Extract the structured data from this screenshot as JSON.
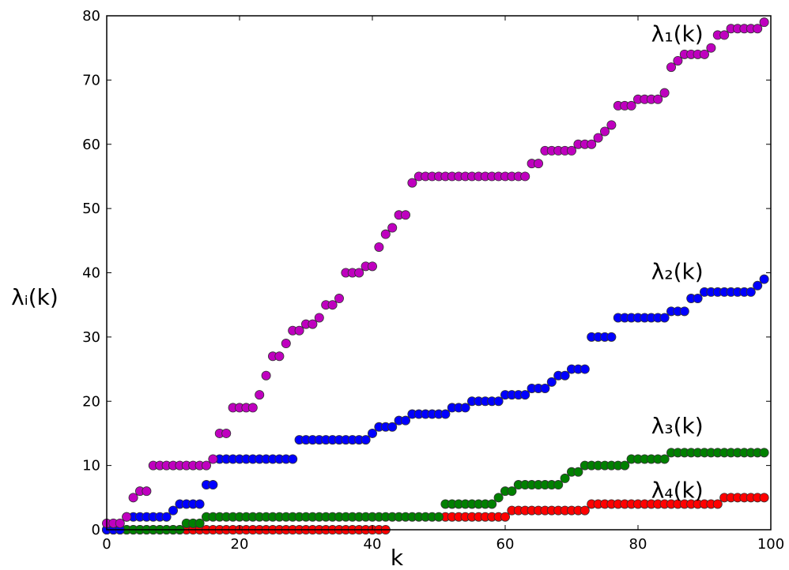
{
  "chart_data": {
    "type": "scatter",
    "title": "",
    "xlabel": "k",
    "ylabel": "λᵢ(k)",
    "xlim": [
      0,
      100
    ],
    "ylim": [
      0,
      80
    ],
    "xticks": [
      0,
      20,
      40,
      60,
      80,
      100
    ],
    "yticks": [
      0,
      10,
      20,
      30,
      40,
      50,
      60,
      70,
      80
    ],
    "grid": false,
    "legend": "none",
    "x": [
      0,
      1,
      2,
      3,
      4,
      5,
      6,
      7,
      8,
      9,
      10,
      11,
      12,
      13,
      14,
      15,
      16,
      17,
      18,
      19,
      20,
      21,
      22,
      23,
      24,
      25,
      26,
      27,
      28,
      29,
      30,
      31,
      32,
      33,
      34,
      35,
      36,
      37,
      38,
      39,
      40,
      41,
      42,
      43,
      44,
      45,
      46,
      47,
      48,
      49,
      50,
      51,
      52,
      53,
      54,
      55,
      56,
      57,
      58,
      59,
      60,
      61,
      62,
      63,
      64,
      65,
      66,
      67,
      68,
      69,
      70,
      71,
      72,
      73,
      74,
      75,
      76,
      77,
      78,
      79,
      80,
      81,
      82,
      83,
      84,
      85,
      86,
      87,
      88,
      89,
      90,
      91,
      92,
      93,
      94,
      95,
      96,
      97,
      98,
      99
    ],
    "series": [
      {
        "name": "λ₁(k)",
        "color": "#bf00bf",
        "values": [
          1,
          1,
          1,
          2,
          5,
          6,
          6,
          10,
          10,
          10,
          10,
          10,
          10,
          10,
          10,
          10,
          11,
          15,
          15,
          19,
          19,
          19,
          19,
          21,
          24,
          27,
          27,
          29,
          31,
          31,
          32,
          32,
          33,
          35,
          35,
          36,
          40,
          40,
          40,
          41,
          41,
          44,
          46,
          47,
          49,
          49,
          54,
          55,
          55,
          55,
          55,
          55,
          55,
          55,
          55,
          55,
          55,
          55,
          55,
          55,
          55,
          55,
          55,
          55,
          57,
          57,
          59,
          59,
          59,
          59,
          59,
          60,
          60,
          60,
          61,
          62,
          63,
          66,
          66,
          66,
          67,
          67,
          67,
          67,
          68,
          72,
          73,
          74,
          74,
          74,
          74,
          75,
          77,
          77,
          78,
          78,
          78,
          78,
          78,
          79
        ]
      },
      {
        "name": "λ₂(k)",
        "color": "#0000ff",
        "values": [
          0,
          0,
          0,
          2,
          2,
          2,
          2,
          2,
          2,
          2,
          3,
          4,
          4,
          4,
          4,
          7,
          7,
          11,
          11,
          11,
          11,
          11,
          11,
          11,
          11,
          11,
          11,
          11,
          11,
          14,
          14,
          14,
          14,
          14,
          14,
          14,
          14,
          14,
          14,
          14,
          15,
          16,
          16,
          16,
          17,
          17,
          18,
          18,
          18,
          18,
          18,
          18,
          19,
          19,
          19,
          20,
          20,
          20,
          20,
          20,
          21,
          21,
          21,
          21,
          22,
          22,
          22,
          23,
          24,
          24,
          25,
          25,
          25,
          30,
          30,
          30,
          30,
          33,
          33,
          33,
          33,
          33,
          33,
          33,
          33,
          34,
          34,
          34,
          36,
          36,
          37,
          37,
          37,
          37,
          37,
          37,
          37,
          37,
          38,
          39
        ]
      },
      {
        "name": "λ₃(k)",
        "color": "#008000",
        "values": [
          0,
          0,
          0,
          0,
          0,
          0,
          0,
          0,
          0,
          0,
          0,
          0,
          1,
          1,
          1,
          2,
          2,
          2,
          2,
          2,
          2,
          2,
          2,
          2,
          2,
          2,
          2,
          2,
          2,
          2,
          2,
          2,
          2,
          2,
          2,
          2,
          2,
          2,
          2,
          2,
          2,
          2,
          2,
          2,
          2,
          2,
          2,
          2,
          2,
          2,
          2,
          4,
          4,
          4,
          4,
          4,
          4,
          4,
          4,
          5,
          6,
          6,
          7,
          7,
          7,
          7,
          7,
          7,
          7,
          8,
          9,
          9,
          10,
          10,
          10,
          10,
          10,
          10,
          10,
          11,
          11,
          11,
          11,
          11,
          11,
          12,
          12,
          12,
          12,
          12,
          12,
          12,
          12,
          12,
          12,
          12,
          12,
          12,
          12,
          12
        ]
      },
      {
        "name": "λ₄(k)",
        "color": "#ff0000",
        "values": [
          0,
          0,
          0,
          0,
          0,
          0,
          0,
          0,
          0,
          0,
          0,
          0,
          0,
          0,
          0,
          0,
          0,
          0,
          0,
          0,
          0,
          0,
          0,
          0,
          0,
          0,
          0,
          0,
          0,
          0,
          0,
          0,
          0,
          0,
          0,
          0,
          0,
          0,
          0,
          0,
          0,
          0,
          0,
          null,
          null,
          null,
          null,
          null,
          null,
          null,
          null,
          2,
          2,
          2,
          2,
          2,
          2,
          2,
          2,
          2,
          2,
          3,
          3,
          3,
          3,
          3,
          3,
          3,
          3,
          3,
          3,
          3,
          3,
          4,
          4,
          4,
          4,
          4,
          4,
          4,
          4,
          4,
          4,
          4,
          4,
          4,
          4,
          4,
          4,
          4,
          4,
          4,
          4,
          5,
          5,
          5,
          5,
          5,
          5,
          5
        ]
      }
    ],
    "annotations": [
      {
        "text": "λ₁(k)",
        "x": 82,
        "y": 76
      },
      {
        "text": "λ₂(k)",
        "x": 82,
        "y": 39
      },
      {
        "text": "λ₃(k)",
        "x": 82,
        "y": 15
      },
      {
        "text": "λ₄(k)",
        "x": 82,
        "y": 5
      }
    ]
  }
}
